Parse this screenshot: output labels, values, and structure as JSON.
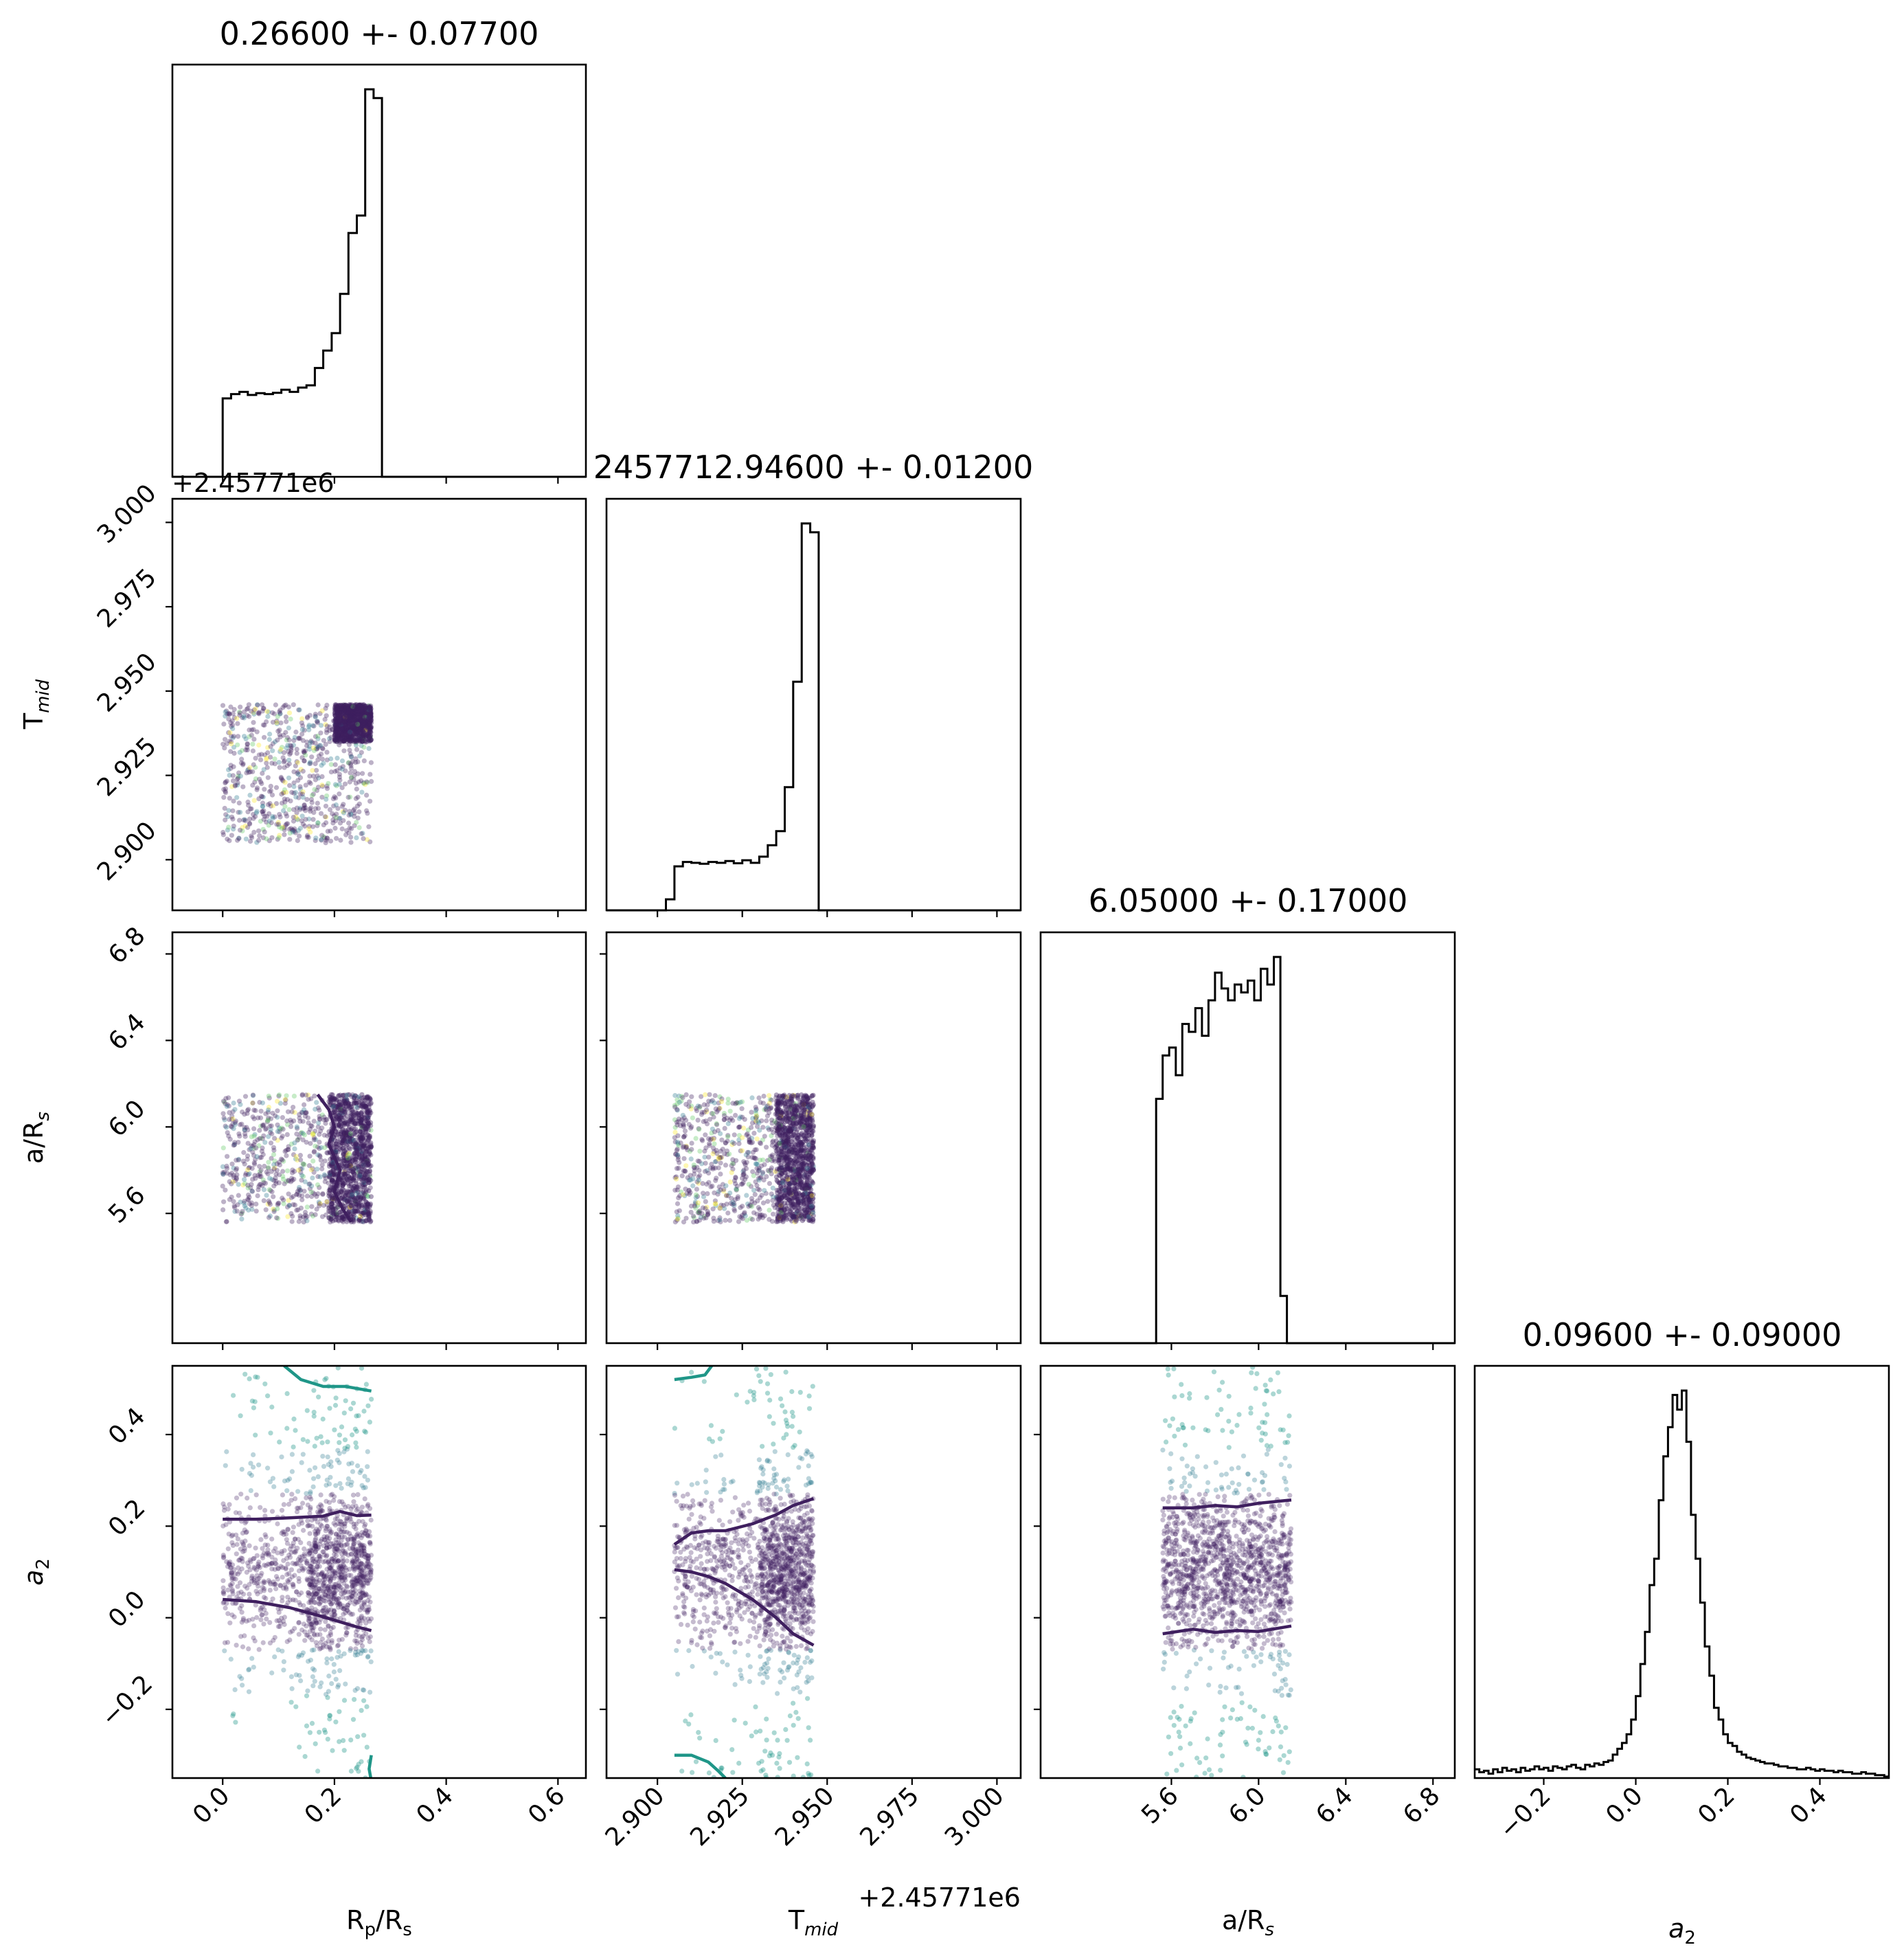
{
  "figure": {
    "type": "corner-plot"
  },
  "chart_data": {
    "type": "scatter",
    "parameters": [
      {
        "key": "rp",
        "label": "R_p/R_s",
        "display_label": "Rp/Rs",
        "range": [
          -0.09,
          0.65
        ],
        "ticks": [
          0.0,
          0.2,
          0.4,
          0.6
        ],
        "tick_labels": [
          "0.0",
          "0.2",
          "0.4",
          "0.6"
        ],
        "title": "0.26600 +- 0.07700"
      },
      {
        "key": "tmid",
        "label": "T_mid",
        "display_label": "Tmid",
        "range": [
          2.885,
          3.007
        ],
        "ticks": [
          2.9,
          2.925,
          2.95,
          2.975,
          3.0
        ],
        "tick_labels": [
          "2.900",
          "2.925",
          "2.950",
          "2.975",
          "3.000"
        ],
        "offset": "+2.45771e6",
        "title": "2457712.94600 +- 0.01200"
      },
      {
        "key": "ars",
        "label": "a/R_s",
        "display_label": "a/Rs",
        "range": [
          5.0,
          6.9
        ],
        "ticks": [
          5.6,
          6.0,
          6.4,
          6.8
        ],
        "tick_labels": [
          "5.6",
          "6.0",
          "6.4",
          "6.8"
        ],
        "title": "6.05000 +- 0.17000"
      },
      {
        "key": "a2",
        "label": "a_2",
        "display_label": "a2",
        "range": [
          -0.35,
          0.55
        ],
        "ticks": [
          -0.2,
          0.0,
          0.2,
          0.4
        ],
        "tick_labels": [
          "−0.2",
          "0.0",
          "0.2",
          "0.4"
        ],
        "title": "0.09600 +- 0.09000"
      }
    ],
    "histograms": [
      {
        "param": "rp",
        "bin_edges": [
          -0.09,
          -0.075,
          -0.06,
          -0.045,
          -0.03,
          -0.015,
          0.0,
          0.015,
          0.03,
          0.045,
          0.06,
          0.075,
          0.09,
          0.105,
          0.12,
          0.135,
          0.15,
          0.165,
          0.18,
          0.195,
          0.21,
          0.225,
          0.24,
          0.255,
          0.27,
          0.285,
          0.3,
          0.4,
          0.5,
          0.65
        ],
        "counts": [
          0,
          0,
          0,
          0,
          0,
          0,
          180,
          190,
          195,
          188,
          192,
          190,
          193,
          200,
          195,
          205,
          210,
          250,
          290,
          330,
          420,
          560,
          600,
          890,
          870,
          0,
          0,
          0,
          0
        ]
      },
      {
        "param": "tmid",
        "bin_edges": [
          2.885,
          2.9025,
          2.905,
          2.9075,
          2.91,
          2.9125,
          2.915,
          2.9175,
          2.92,
          2.9225,
          2.925,
          2.9275,
          2.93,
          2.9325,
          2.935,
          2.9375,
          2.94,
          2.9425,
          2.945,
          2.9475,
          2.95,
          3.007
        ],
        "counts": [
          0,
          25,
          100,
          110,
          108,
          106,
          110,
          108,
          112,
          107,
          114,
          108,
          122,
          148,
          180,
          280,
          520,
          880,
          860,
          0,
          0
        ]
      },
      {
        "param": "ars",
        "bin_edges": [
          5.0,
          5.4,
          5.53,
          5.56,
          5.59,
          5.62,
          5.65,
          5.68,
          5.71,
          5.74,
          5.77,
          5.8,
          5.83,
          5.86,
          5.89,
          5.92,
          5.95,
          5.98,
          6.01,
          6.04,
          6.07,
          6.1,
          6.13,
          6.16,
          6.9
        ],
        "counts": [
          0,
          0,
          0.62,
          0.73,
          0.75,
          0.68,
          0.81,
          0.79,
          0.85,
          0.78,
          0.87,
          0.94,
          0.9,
          0.87,
          0.91,
          0.89,
          0.92,
          0.87,
          0.95,
          0.91,
          0.98,
          0.12,
          0,
          0
        ]
      },
      {
        "param": "a2",
        "bin_edges": [
          -0.35,
          -0.34,
          -0.33,
          -0.32,
          -0.31,
          -0.3,
          -0.29,
          -0.28,
          -0.27,
          -0.26,
          -0.25,
          -0.24,
          -0.23,
          -0.22,
          -0.21,
          -0.2,
          -0.19,
          -0.18,
          -0.17,
          -0.16,
          -0.15,
          -0.14,
          -0.13,
          -0.12,
          -0.11,
          -0.1,
          -0.09,
          -0.08,
          -0.07,
          -0.06,
          -0.05,
          -0.04,
          -0.03,
          -0.02,
          -0.01,
          0.0,
          0.01,
          0.02,
          0.03,
          0.04,
          0.05,
          0.06,
          0.07,
          0.08,
          0.09,
          0.1,
          0.11,
          0.12,
          0.13,
          0.14,
          0.15,
          0.16,
          0.17,
          0.18,
          0.19,
          0.2,
          0.21,
          0.22,
          0.23,
          0.24,
          0.25,
          0.26,
          0.27,
          0.28,
          0.29,
          0.3,
          0.31,
          0.32,
          0.33,
          0.34,
          0.35,
          0.36,
          0.37,
          0.38,
          0.39,
          0.4,
          0.41,
          0.42,
          0.43,
          0.44,
          0.45,
          0.46,
          0.47,
          0.48,
          0.49,
          0.5,
          0.51,
          0.52,
          0.53,
          0.54,
          0.55
        ],
        "counts": [
          6,
          4,
          5,
          3,
          6,
          4,
          7,
          5,
          6,
          4,
          7,
          5,
          6,
          8,
          6,
          7,
          5,
          8,
          7,
          6,
          8,
          9,
          7,
          6,
          9,
          8,
          10,
          9,
          11,
          12,
          16,
          20,
          24,
          30,
          40,
          56,
          78,
          100,
          132,
          150,
          190,
          220,
          240,
          262,
          252,
          265,
          230,
          180,
          150,
          120,
          90,
          70,
          48,
          40,
          30,
          24,
          22,
          18,
          16,
          14,
          13,
          12,
          11,
          10,
          10,
          9,
          8,
          8,
          7,
          7,
          6,
          6,
          7,
          6,
          5,
          6,
          5,
          5,
          4,
          5,
          4,
          4,
          3,
          3,
          4,
          3,
          3,
          2,
          2,
          1
        ]
      }
    ],
    "scatter_regions": [
      {
        "x": "rp",
        "y": "tmid",
        "x_range": [
          0.0,
          0.266
        ],
        "y_range": [
          2.905,
          2.946
        ],
        "dense_x": [
          0.2,
          0.266
        ],
        "dense_y": [
          2.935,
          2.946
        ]
      },
      {
        "x": "rp",
        "y": "ars",
        "x_range": [
          0.0,
          0.266
        ],
        "y_range": [
          5.56,
          6.15
        ],
        "dense_x": [
          0.19,
          0.266
        ],
        "dense_y": [
          5.56,
          6.15
        ]
      },
      {
        "x": "tmid",
        "y": "ars",
        "x_range": [
          2.905,
          2.946
        ],
        "y_range": [
          5.56,
          6.15
        ],
        "dense_x": [
          2.935,
          2.946
        ],
        "dense_y": [
          5.56,
          6.15
        ]
      },
      {
        "x": "rp",
        "y": "a2",
        "x_range": [
          0.0,
          0.266
        ],
        "y_range": [
          -0.35,
          0.55
        ],
        "dense_x": [
          0.15,
          0.266
        ],
        "dense_y": [
          0.0,
          0.2
        ]
      },
      {
        "x": "tmid",
        "y": "a2",
        "x_range": [
          2.905,
          2.946
        ],
        "y_range": [
          -0.35,
          0.55
        ],
        "dense_x": [
          2.93,
          2.946
        ],
        "dense_y": [
          -0.02,
          0.22
        ]
      },
      {
        "x": "ars",
        "y": "a2",
        "x_range": [
          5.56,
          6.15
        ],
        "y_range": [
          -0.35,
          0.55
        ],
        "dense_x": [
          5.56,
          6.15
        ],
        "dense_y": [
          -0.03,
          0.23
        ]
      }
    ],
    "contours": [
      {
        "x": "rp",
        "y": "a2",
        "color": "#3f1f5f",
        "points": [
          [
            0.0,
            0.215
          ],
          [
            0.06,
            0.215
          ],
          [
            0.12,
            0.218
          ],
          [
            0.18,
            0.222
          ],
          [
            0.21,
            0.232
          ],
          [
            0.24,
            0.223
          ],
          [
            0.266,
            0.224
          ]
        ]
      },
      {
        "x": "rp",
        "y": "a2",
        "color": "#3f1f5f",
        "points": [
          [
            0.0,
            0.04
          ],
          [
            0.06,
            0.035
          ],
          [
            0.12,
            0.022
          ],
          [
            0.18,
            0.002
          ],
          [
            0.24,
            -0.02
          ],
          [
            0.266,
            -0.028
          ]
        ]
      },
      {
        "x": "rp",
        "y": "a2",
        "color": "#1f9688",
        "points": [
          [
            0.11,
            0.55
          ],
          [
            0.14,
            0.52
          ],
          [
            0.18,
            0.505
          ],
          [
            0.22,
            0.505
          ],
          [
            0.266,
            0.495
          ]
        ]
      },
      {
        "x": "rp",
        "y": "a2",
        "color": "#1f9688",
        "points": [
          [
            0.266,
            -0.3
          ],
          [
            0.262,
            -0.33
          ],
          [
            0.265,
            -0.35
          ]
        ]
      },
      {
        "x": "tmid",
        "y": "a2",
        "color": "#3f1f5f",
        "points": [
          [
            2.905,
            0.16
          ],
          [
            2.91,
            0.185
          ],
          [
            2.915,
            0.19
          ],
          [
            2.92,
            0.19
          ],
          [
            2.928,
            0.205
          ],
          [
            2.935,
            0.225
          ],
          [
            2.94,
            0.245
          ],
          [
            2.946,
            0.26
          ]
        ]
      },
      {
        "x": "tmid",
        "y": "a2",
        "color": "#3f1f5f",
        "points": [
          [
            2.905,
            0.105
          ],
          [
            2.91,
            0.1
          ],
          [
            2.915,
            0.09
          ],
          [
            2.92,
            0.075
          ],
          [
            2.928,
            0.04
          ],
          [
            2.935,
            0.0
          ],
          [
            2.94,
            -0.035
          ],
          [
            2.946,
            -0.06
          ]
        ]
      },
      {
        "x": "tmid",
        "y": "a2",
        "color": "#1f9688",
        "points": [
          [
            2.905,
            0.52
          ],
          [
            2.91,
            0.525
          ],
          [
            2.914,
            0.53
          ],
          [
            2.916,
            0.55
          ]
        ]
      },
      {
        "x": "tmid",
        "y": "a2",
        "color": "#1f9688",
        "points": [
          [
            2.905,
            -0.3
          ],
          [
            2.91,
            -0.3
          ],
          [
            2.915,
            -0.315
          ],
          [
            2.918,
            -0.335
          ],
          [
            2.92,
            -0.35
          ]
        ]
      },
      {
        "x": "ars",
        "y": "a2",
        "color": "#3f1f5f",
        "points": [
          [
            5.56,
            0.24
          ],
          [
            5.7,
            0.24
          ],
          [
            5.8,
            0.245
          ],
          [
            5.9,
            0.242
          ],
          [
            6.0,
            0.25
          ],
          [
            6.15,
            0.257
          ]
        ]
      },
      {
        "x": "ars",
        "y": "a2",
        "color": "#3f1f5f",
        "points": [
          [
            5.56,
            -0.035
          ],
          [
            5.7,
            -0.025
          ],
          [
            5.8,
            -0.032
          ],
          [
            5.9,
            -0.028
          ],
          [
            6.0,
            -0.03
          ],
          [
            6.15,
            -0.018
          ]
        ]
      },
      {
        "x": "rp",
        "y": "ars",
        "color": "#3f1f5f",
        "points": [
          [
            0.17,
            6.15
          ],
          [
            0.19,
            6.08
          ],
          [
            0.2,
            6.0
          ],
          [
            0.19,
            5.92
          ],
          [
            0.21,
            5.8
          ],
          [
            0.2,
            5.7
          ],
          [
            0.215,
            5.62
          ],
          [
            0.23,
            5.56
          ]
        ]
      }
    ]
  },
  "colors": {
    "viridis_dark": "#3f1f5f",
    "viridis_mid": "#2a788e",
    "viridis_teal": "#1f9688",
    "viridis_green": "#5ec962",
    "viridis_yellow": "#fde725"
  }
}
